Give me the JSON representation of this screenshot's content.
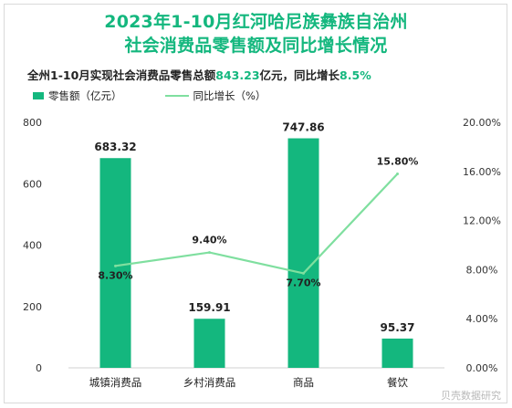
{
  "title_line1": "2023年1-10月红河哈尼族彝族自治州",
  "title_line2": "社会消费品零售额及同比增长情况",
  "summary": {
    "prefix": "全州1-10月实现社会消费品零售总额",
    "total": "843.23",
    "middle": "亿元，同比增长",
    "growth": "8.5%"
  },
  "legend": {
    "bar_label": "零售额（亿元）",
    "line_label": "同比增长（%）"
  },
  "watermark": "贝壳数据研究",
  "colors": {
    "bar": "#14b77e",
    "line": "#7fdf9f",
    "accent": "#14b77e"
  },
  "chart_data": {
    "type": "bar",
    "categories": [
      "城镇消费品",
      "乡村消费品",
      "商品",
      "餐饮"
    ],
    "series": [
      {
        "name": "零售额（亿元）",
        "type": "bar",
        "axis": "left",
        "values": [
          683.32,
          159.91,
          747.86,
          95.37
        ],
        "labels": [
          "683.32",
          "159.91",
          "747.86",
          "95.37"
        ]
      },
      {
        "name": "同比增长（%）",
        "type": "line",
        "axis": "right",
        "values": [
          8.3,
          9.4,
          7.7,
          15.8
        ],
        "labels": [
          "8.30%",
          "9.40%",
          "7.70%",
          "15.80%"
        ]
      }
    ],
    "ylim_left": [
      0,
      800
    ],
    "yticks_left": [
      "0",
      "200",
      "400",
      "600",
      "800"
    ],
    "ylim_right": [
      0,
      20
    ],
    "yticks_right": [
      "0.00%",
      "4.00%",
      "8.00%",
      "12.00%",
      "16.00%",
      "20.00%"
    ],
    "grid": false,
    "legend_position": "top-left"
  }
}
